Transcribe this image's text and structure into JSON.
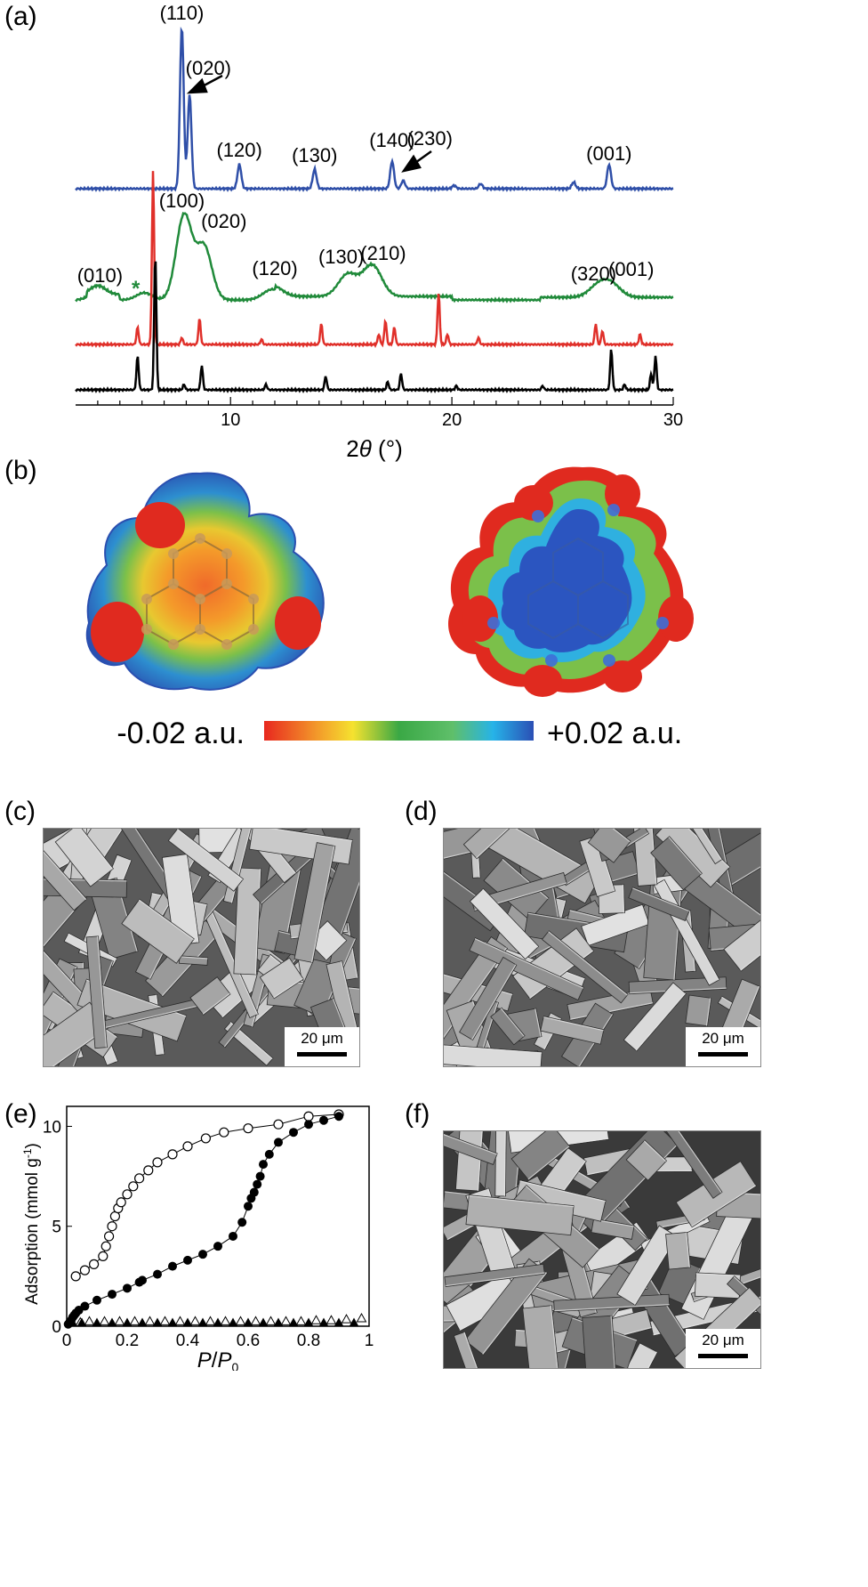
{
  "panels": {
    "a": "(a)",
    "b": "(b)",
    "c": "(c)",
    "d": "(d)",
    "e": "(e)",
    "f": "(f)"
  },
  "colors": {
    "blue": "#2f4fa8",
    "green": "#208a3a",
    "red": "#e0302a",
    "black": "#000000"
  },
  "xrd": {
    "xlabel_main": "2",
    "xlabel_theta": "θ",
    "xlabel_unit": " (°)",
    "xlim": [
      3,
      30
    ],
    "xticks": [
      "10",
      "20",
      "30"
    ],
    "blue_peaks": [
      [
        7.8,
        1.0
      ],
      [
        8.15,
        0.58
      ],
      [
        10.4,
        0.15
      ],
      [
        13.8,
        0.12
      ],
      [
        17.3,
        0.17
      ],
      [
        17.8,
        0.05
      ],
      [
        20.1,
        0.02
      ],
      [
        21.3,
        0.03
      ],
      [
        25.5,
        0.04
      ],
      [
        27.1,
        0.15
      ]
    ],
    "blue_labels": [
      {
        "text": "(110)",
        "x": 7.8
      },
      {
        "text": "(020)",
        "x": 9.0
      },
      {
        "text": "(120)",
        "x": 10.4
      },
      {
        "text": "(130)",
        "x": 13.8
      },
      {
        "text": "(140)",
        "x": 17.3
      },
      {
        "text": "(230)",
        "x": 19.0
      },
      {
        "text": "(001)",
        "x": 27.1
      }
    ],
    "green_peaks": [
      [
        4.0,
        0.1
      ],
      [
        6.1,
        0.08
      ],
      [
        7.9,
        0.95
      ],
      [
        8.8,
        0.6
      ],
      [
        11.9,
        0.12
      ],
      [
        15.3,
        0.25
      ],
      [
        16.4,
        0.35
      ],
      [
        26.6,
        0.12
      ],
      [
        27.2,
        0.14
      ]
    ],
    "green_labels": [
      {
        "text": "(010)",
        "x": 4.1
      },
      {
        "text": "(100)",
        "x": 7.8
      },
      {
        "text": "(020)",
        "x": 9.7
      },
      {
        "text": "(120)",
        "x": 12.0
      },
      {
        "text": "(130)",
        "x": 15.0
      },
      {
        "text": "(210)",
        "x": 16.9
      },
      {
        "text": "(320)",
        "x": 26.4
      },
      {
        "text": "(001)",
        "x": 28.1
      }
    ],
    "star": "*",
    "red_peaks": [
      [
        5.8,
        0.1
      ],
      [
        6.5,
        1.0
      ],
      [
        7.8,
        0.04
      ],
      [
        8.6,
        0.15
      ],
      [
        11.4,
        0.03
      ],
      [
        14.1,
        0.12
      ],
      [
        16.7,
        0.06
      ],
      [
        17.0,
        0.14
      ],
      [
        17.4,
        0.1
      ],
      [
        19.4,
        0.3
      ],
      [
        19.8,
        0.06
      ],
      [
        21.2,
        0.04
      ],
      [
        26.5,
        0.12
      ],
      [
        26.8,
        0.08
      ],
      [
        28.5,
        0.06
      ]
    ],
    "black_peaks": [
      [
        5.8,
        0.25
      ],
      [
        6.6,
        1.0
      ],
      [
        7.9,
        0.04
      ],
      [
        8.7,
        0.18
      ],
      [
        11.6,
        0.04
      ],
      [
        14.3,
        0.1
      ],
      [
        17.1,
        0.06
      ],
      [
        17.7,
        0.12
      ],
      [
        20.2,
        0.03
      ],
      [
        24.1,
        0.03
      ],
      [
        27.2,
        0.3
      ],
      [
        27.8,
        0.04
      ],
      [
        29.2,
        0.25
      ],
      [
        29.0,
        0.12
      ]
    ]
  },
  "esp": {
    "min_label": "-0.02 a.u.",
    "max_label": "+0.02 a.u."
  },
  "sem": {
    "scale_label": "20 μm"
  },
  "iso": {
    "ylabel_main": "Adsorption (mmol g",
    "ylabel_sup": "-1",
    "ylabel_close": ")",
    "xlabel_p": "P",
    "xlabel_slash": "/",
    "xlabel_p0": "P",
    "xlabel_sub": "0",
    "xticks": [
      "0",
      "0.2",
      "0.4",
      "0.6",
      "0.8",
      "1"
    ],
    "yticks": [
      "0",
      "5",
      "10"
    ],
    "xlim": [
      0,
      1
    ],
    "ylim": [
      0,
      11
    ],
    "desorption": [
      [
        0.03,
        2.5
      ],
      [
        0.06,
        2.8
      ],
      [
        0.09,
        3.1
      ],
      [
        0.12,
        3.5
      ],
      [
        0.13,
        4.0
      ],
      [
        0.14,
        4.5
      ],
      [
        0.15,
        5.0
      ],
      [
        0.16,
        5.5
      ],
      [
        0.17,
        5.9
      ],
      [
        0.18,
        6.2
      ],
      [
        0.2,
        6.6
      ],
      [
        0.22,
        7.0
      ],
      [
        0.24,
        7.4
      ],
      [
        0.27,
        7.8
      ],
      [
        0.3,
        8.2
      ],
      [
        0.35,
        8.6
      ],
      [
        0.4,
        9.0
      ],
      [
        0.46,
        9.4
      ],
      [
        0.52,
        9.7
      ],
      [
        0.6,
        9.9
      ],
      [
        0.7,
        10.1
      ],
      [
        0.8,
        10.5
      ],
      [
        0.9,
        10.6
      ]
    ],
    "adsorption": [
      [
        0.005,
        0.1
      ],
      [
        0.01,
        0.2
      ],
      [
        0.015,
        0.3
      ],
      [
        0.02,
        0.45
      ],
      [
        0.025,
        0.55
      ],
      [
        0.03,
        0.65
      ],
      [
        0.04,
        0.8
      ],
      [
        0.06,
        1.0
      ],
      [
        0.1,
        1.3
      ],
      [
        0.15,
        1.6
      ],
      [
        0.2,
        1.9
      ],
      [
        0.24,
        2.2
      ],
      [
        0.25,
        2.3
      ],
      [
        0.3,
        2.6
      ],
      [
        0.35,
        3.0
      ],
      [
        0.4,
        3.3
      ],
      [
        0.45,
        3.6
      ],
      [
        0.5,
        4.0
      ],
      [
        0.55,
        4.5
      ],
      [
        0.58,
        5.2
      ],
      [
        0.6,
        6.0
      ],
      [
        0.61,
        6.4
      ],
      [
        0.62,
        6.7
      ],
      [
        0.63,
        7.1
      ],
      [
        0.64,
        7.5
      ],
      [
        0.65,
        8.1
      ],
      [
        0.67,
        8.6
      ],
      [
        0.7,
        9.2
      ],
      [
        0.75,
        9.7
      ],
      [
        0.8,
        10.1
      ],
      [
        0.85,
        10.3
      ],
      [
        0.9,
        10.5
      ]
    ],
    "triangles_filled": [
      0.02,
      0.05,
      0.1,
      0.15,
      0.2,
      0.25,
      0.3,
      0.35,
      0.4,
      0.45,
      0.5,
      0.55,
      0.6,
      0.65,
      0.7,
      0.75,
      0.8,
      0.85,
      0.9,
      0.95
    ],
    "triangles_open_y": [
      0.2,
      0.25,
      0.25,
      0.25,
      0.25,
      0.25,
      0.25,
      0.25,
      0.25,
      0.25,
      0.25,
      0.25,
      0.25,
      0.25,
      0.25,
      0.25,
      0.3,
      0.3,
      0.35,
      0.4
    ]
  }
}
